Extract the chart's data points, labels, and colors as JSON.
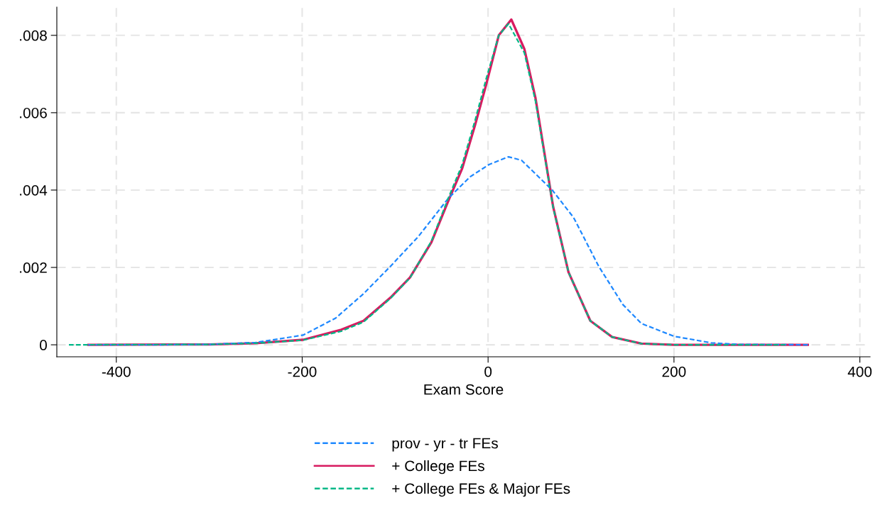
{
  "chart_data": {
    "type": "line",
    "xlabel": "Exam Score",
    "xlim": [
      -464,
      411
    ],
    "ylim": [
      -0.00031,
      0.00873
    ],
    "xticks": [
      -400,
      -200,
      0,
      200,
      400
    ],
    "yticks": [
      {
        "value": 0,
        "label": "0"
      },
      {
        "value": 0.002,
        "label": ".002"
      },
      {
        "value": 0.004,
        "label": ".004"
      },
      {
        "value": 0.006,
        "label": ".006"
      },
      {
        "value": 0.008,
        "label": ".008"
      }
    ],
    "grid": true,
    "legend": "bottom",
    "series": [
      {
        "name": "prov - yr - tr FEs",
        "color": "#1e88ff",
        "line_style": "dashed",
        "x": [
          -430,
          -350,
          -300,
          -250,
          -199,
          -164,
          -134,
          -105,
          -75,
          -43,
          -19.5,
          1,
          22,
          36,
          69,
          92,
          119,
          145,
          165,
          200,
          240,
          270,
          344
        ],
        "values": [
          0,
          0,
          1e-05,
          6e-05,
          0.00025,
          0.00069,
          0.00132,
          0.00203,
          0.0028,
          0.00378,
          0.00434,
          0.00466,
          0.00486,
          0.00477,
          0.004,
          0.00329,
          0.00203,
          0.00104,
          0.00055,
          0.00022,
          5e-05,
          1e-05,
          0
        ]
      },
      {
        "name": "+ College FEs",
        "color": "#d81b60",
        "line_style": "solid",
        "x": [
          -430,
          -300,
          -250,
          -199,
          -158,
          -134,
          -105,
          -84,
          -61,
          -43,
          -28,
          -14,
          -2,
          11.5,
          25,
          39,
          51,
          60,
          70,
          86.5,
          110,
          133.5,
          165,
          200,
          250,
          344
        ],
        "values": [
          0,
          1e-05,
          4e-05,
          0.00013,
          0.00039,
          0.00062,
          0.00122,
          0.00174,
          0.00265,
          0.00371,
          0.00455,
          0.00568,
          0.00673,
          0.008,
          0.00841,
          0.00765,
          0.00638,
          0.00505,
          0.00357,
          0.00188,
          0.00062,
          0.0002,
          3e-05,
          0,
          0,
          0
        ]
      },
      {
        "name": "+ College FEs & Major FEs",
        "color": "#00b887",
        "line_style": "dashed",
        "x": [
          -451,
          -300,
          -250,
          -199,
          -158,
          -134,
          -105,
          -84,
          -61,
          -43,
          -28,
          -14,
          -2,
          11.5,
          22,
          39,
          51,
          60,
          70,
          86.5,
          110,
          133.5,
          165,
          200,
          320
        ],
        "values": [
          0,
          1e-05,
          4e-05,
          0.00012,
          0.00035,
          0.00059,
          0.0012,
          0.00173,
          0.00268,
          0.00378,
          0.00465,
          0.0058,
          0.00688,
          0.008,
          0.0083,
          0.00755,
          0.0063,
          0.005,
          0.00355,
          0.00188,
          0.00062,
          0.0002,
          3e-05,
          0,
          0
        ]
      }
    ]
  }
}
